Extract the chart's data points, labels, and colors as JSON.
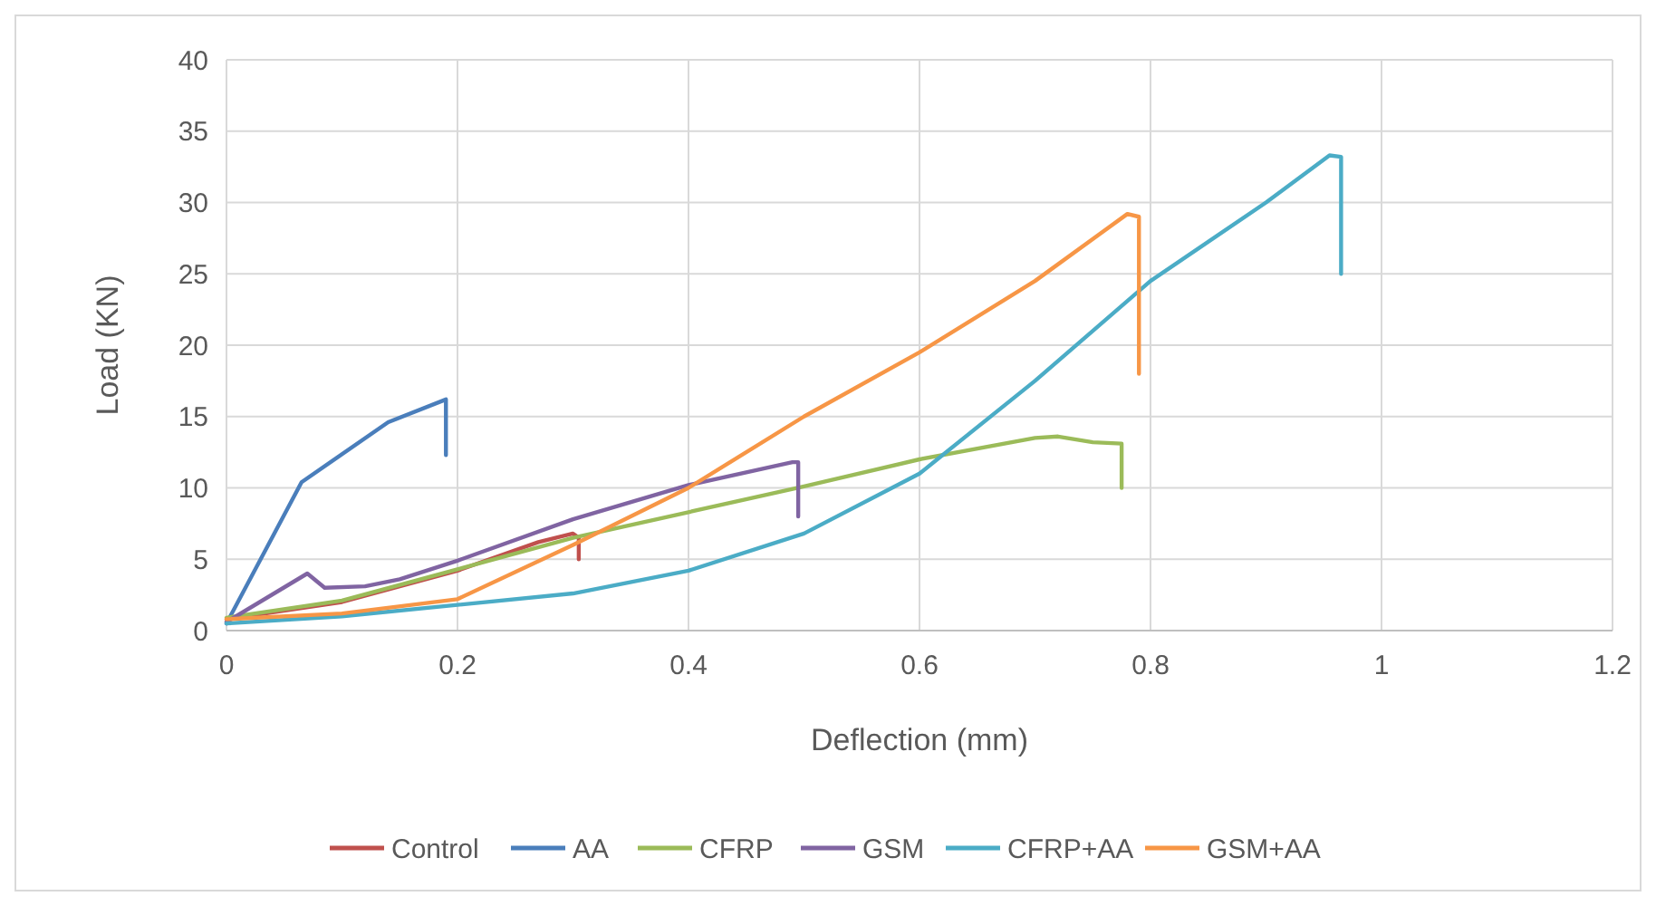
{
  "chart_data": {
    "type": "line",
    "xlabel": "Deflection (mm)",
    "ylabel": "Load (KN)",
    "xlim": [
      0,
      1.2
    ],
    "xticks": [
      0,
      0.2,
      0.4,
      0.6,
      0.8,
      1,
      1.2
    ],
    "ylim": [
      0,
      40
    ],
    "yticks": [
      0,
      5,
      10,
      15,
      20,
      25,
      30,
      35,
      40
    ],
    "grid": true,
    "legend": "bottom",
    "marker": "none",
    "line_style": "solid",
    "series": [
      {
        "name": "Control",
        "color": "#c0504d",
        "x": [
          0,
          0.1,
          0.2,
          0.27,
          0.3,
          0.305,
          0.305
        ],
        "values": [
          0.8,
          2,
          4.2,
          6.2,
          6.8,
          6.5,
          5
        ]
      },
      {
        "name": "AA",
        "color": "#4a7ebb",
        "x": [
          0,
          0.065,
          0.14,
          0.19,
          0.19
        ],
        "values": [
          0.5,
          10.4,
          14.6,
          16.2,
          12.3
        ]
      },
      {
        "name": "CFRP",
        "color": "#9bbb59",
        "x": [
          0,
          0.1,
          0.2,
          0.3,
          0.4,
          0.5,
          0.6,
          0.7,
          0.72,
          0.75,
          0.775,
          0.775
        ],
        "values": [
          0.9,
          2.1,
          4.3,
          6.5,
          8.3,
          10.1,
          12,
          13.5,
          13.6,
          13.2,
          13.1,
          10
        ]
      },
      {
        "name": "GSM",
        "color": "#8064a2",
        "x": [
          0,
          0.07,
          0.085,
          0.12,
          0.15,
          0.2,
          0.3,
          0.4,
          0.49,
          0.495,
          0.495
        ],
        "values": [
          0.6,
          4,
          3,
          3.1,
          3.6,
          4.9,
          7.8,
          10.2,
          11.8,
          11.8,
          8
        ]
      },
      {
        "name": "CFRP+AA",
        "color": "#4bacc6",
        "x": [
          0,
          0.1,
          0.2,
          0.3,
          0.4,
          0.5,
          0.6,
          0.7,
          0.8,
          0.9,
          0.955,
          0.965,
          0.965
        ],
        "values": [
          0.5,
          1,
          1.8,
          2.6,
          4.2,
          6.8,
          11,
          17.5,
          24.5,
          30,
          33.3,
          33.2,
          25
        ]
      },
      {
        "name": "GSM+AA",
        "color": "#f79646",
        "x": [
          0,
          0.1,
          0.2,
          0.3,
          0.4,
          0.5,
          0.6,
          0.7,
          0.78,
          0.79,
          0.79
        ],
        "values": [
          0.8,
          1.2,
          2.2,
          6,
          10,
          15,
          19.5,
          24.5,
          29.2,
          29,
          18
        ]
      }
    ]
  }
}
